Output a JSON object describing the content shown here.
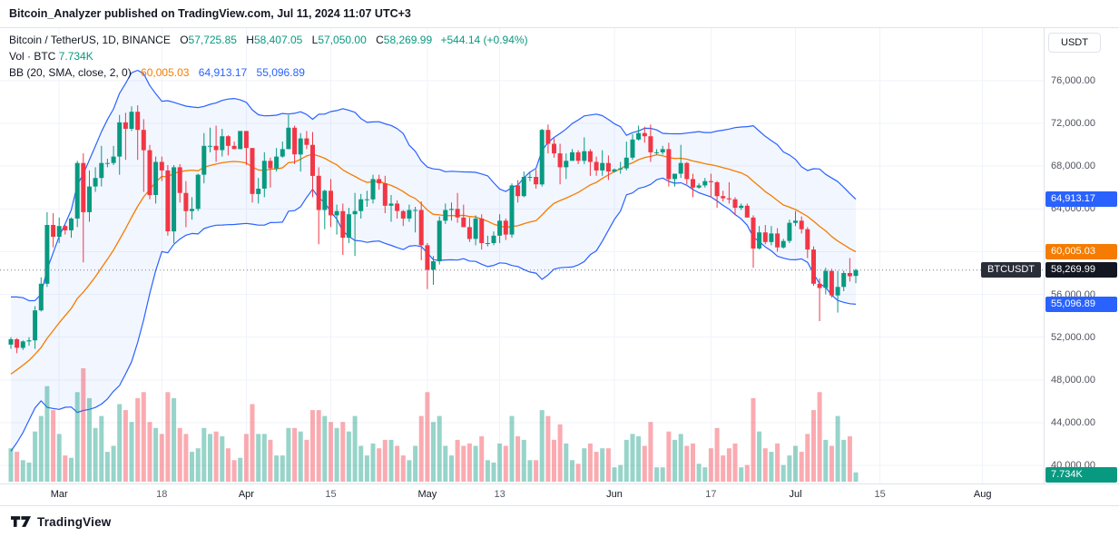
{
  "header": {
    "attribution": "Bitcoin_Analyzer published on TradingView.com, Jul 11, 2024 11:07 UTC+3"
  },
  "legend": {
    "symbol": "Bitcoin / TetherUS, 1D, BINANCE",
    "ohlc": {
      "o_label": "O",
      "o": "57,725.85",
      "h_label": "H",
      "h": "58,407.05",
      "l_label": "L",
      "l": "57,050.00",
      "c_label": "C",
      "c": "58,269.99",
      "change": "+544.14 (+0.94%)"
    },
    "volume": {
      "label": "Vol · BTC",
      "value": "7.734K"
    },
    "bb": {
      "label": "BB (20, SMA, close, 2, 0)",
      "basis": "60,005.03",
      "upper": "64,913.17",
      "lower": "55,096.89"
    }
  },
  "pane": {
    "symbol_tag": "BTCUSDT"
  },
  "price_axis": {
    "currency": "USDT",
    "ticks": [
      {
        "label": "76,000.00",
        "value": 76000
      },
      {
        "label": "72,000.00",
        "value": 72000
      },
      {
        "label": "68,000.00",
        "value": 68000
      },
      {
        "label": "64,000.00",
        "value": 64000
      },
      {
        "label": "60,000.00",
        "value": 60000
      },
      {
        "label": "56,000.00",
        "value": 56000
      },
      {
        "label": "52,000.00",
        "value": 52000
      },
      {
        "label": "48,000.00",
        "value": 48000
      },
      {
        "label": "44,000.00",
        "value": 44000
      },
      {
        "label": "40,000.00",
        "value": 40000
      }
    ],
    "badges": [
      {
        "name": "bb-upper-badge",
        "label": "64,913.17",
        "value": 64913.17,
        "color": "#2962FF"
      },
      {
        "name": "bb-basis-badge",
        "label": "60,005.03",
        "value": 60005.03,
        "color": "#F57C00"
      },
      {
        "name": "last-price-badge",
        "label": "58,269.99",
        "value": 58269.99,
        "color": "#131722"
      },
      {
        "name": "bb-lower-badge",
        "label": "55,096.89",
        "value": 55096.89,
        "color": "#2962FF"
      }
    ],
    "volume_badge": {
      "label": "7.734K",
      "color": "#089981"
    }
  },
  "time_axis": {
    "labels": [
      {
        "text": "Mar",
        "index": 8,
        "type": "month"
      },
      {
        "text": "18",
        "index": 25,
        "type": "day"
      },
      {
        "text": "Apr",
        "index": 39,
        "type": "month"
      },
      {
        "text": "15",
        "index": 53,
        "type": "day"
      },
      {
        "text": "May",
        "index": 69,
        "type": "month"
      },
      {
        "text": "13",
        "index": 81,
        "type": "day"
      },
      {
        "text": "Jun",
        "index": 100,
        "type": "month"
      },
      {
        "text": "17",
        "index": 116,
        "type": "day"
      },
      {
        "text": "Jul",
        "index": 130,
        "type": "month"
      },
      {
        "text": "15",
        "index": 144,
        "type": "day"
      },
      {
        "text": "Aug",
        "index": 161,
        "type": "month"
      }
    ]
  },
  "footer": {
    "brand": "TradingView"
  },
  "colors": {
    "up": "#089981",
    "down": "#F23645",
    "bb_band": "#2962FF",
    "bb_basis": "#F57C00",
    "bb_fill": "rgba(41,98,255,0.06)",
    "grid": "#F0F3FA",
    "price_line": "#787B86"
  },
  "chart_data": {
    "type": "candlestick",
    "symbol": "BTCUSDT",
    "exchange": "BINANCE",
    "interval": "1D",
    "unit": "USDT",
    "volume_unit": "K BTC",
    "start_date": "2024-02-22",
    "last_price": 58269.99,
    "last_change": "+544.14 (+0.94%)",
    "last_volume_k": 7.734,
    "ylim": [
      40000,
      76000
    ],
    "overlays": {
      "bollinger": {
        "length": 20,
        "source": "close",
        "mult": 2,
        "offset": 0,
        "basis": 60005.03,
        "upper": 64913.17,
        "lower": 55096.89
      }
    },
    "bb_seed_closes": [
      43000,
      42900,
      42700,
      43100,
      44300,
      45300,
      47100,
      47800,
      48300,
      49900,
      49700,
      51800,
      51900,
      52200,
      51700,
      52100,
      51600,
      52300,
      51300
    ],
    "ohlcv": [
      [
        51300,
        52000,
        50900,
        51800,
        28
      ],
      [
        51800,
        51900,
        50500,
        51000,
        25
      ],
      [
        51000,
        51700,
        50800,
        51600,
        18
      ],
      [
        51600,
        52000,
        51200,
        51700,
        16
      ],
      [
        51700,
        54900,
        50900,
        54500,
        42
      ],
      [
        54500,
        57600,
        54400,
        57000,
        55
      ],
      [
        57000,
        63700,
        56700,
        62500,
        80
      ],
      [
        62500,
        63600,
        60400,
        61400,
        60
      ],
      [
        61400,
        63200,
        60800,
        62400,
        40
      ],
      [
        62400,
        62500,
        61600,
        62000,
        22
      ],
      [
        62000,
        63200,
        61300,
        63100,
        20
      ],
      [
        63100,
        68500,
        62300,
        68300,
        75
      ],
      [
        68300,
        69200,
        59000,
        63700,
        95
      ],
      [
        63700,
        67600,
        62800,
        66100,
        70
      ],
      [
        66100,
        67900,
        65600,
        66900,
        45
      ],
      [
        66900,
        69900,
        66100,
        68300,
        55
      ],
      [
        68300,
        68700,
        67900,
        68300,
        25
      ],
      [
        68300,
        69900,
        68100,
        68900,
        30
      ],
      [
        68900,
        72800,
        67200,
        72100,
        65
      ],
      [
        72100,
        73000,
        68600,
        71500,
        60
      ],
      [
        71500,
        73600,
        71300,
        73100,
        50
      ],
      [
        73100,
        73700,
        68600,
        71400,
        70
      ],
      [
        71400,
        72400,
        65600,
        69500,
        75
      ],
      [
        69500,
        70000,
        64900,
        65300,
        50
      ],
      [
        65300,
        68900,
        64500,
        68400,
        45
      ],
      [
        68400,
        68900,
        66600,
        67600,
        40
      ],
      [
        67600,
        68100,
        61500,
        61900,
        75
      ],
      [
        61900,
        68100,
        60800,
        67900,
        70
      ],
      [
        67900,
        68200,
        64600,
        65500,
        45
      ],
      [
        65500,
        66600,
        62300,
        63800,
        40
      ],
      [
        63800,
        65100,
        63000,
        64000,
        25
      ],
      [
        64000,
        67300,
        63800,
        67200,
        28
      ],
      [
        67200,
        71100,
        66400,
        69900,
        45
      ],
      [
        69900,
        71600,
        69300,
        69900,
        40
      ],
      [
        69900,
        71800,
        68400,
        69500,
        42
      ],
      [
        69500,
        71500,
        68900,
        70800,
        38
      ],
      [
        70800,
        70900,
        69000,
        69900,
        28
      ],
      [
        69900,
        70300,
        69600,
        69600,
        18
      ],
      [
        69600,
        71300,
        69600,
        71300,
        20
      ],
      [
        71300,
        71300,
        68100,
        69700,
        40
      ],
      [
        69700,
        69700,
        64600,
        65400,
        65
      ],
      [
        65400,
        66900,
        64500,
        65900,
        40
      ],
      [
        65900,
        69300,
        65100,
        68500,
        40
      ],
      [
        68500,
        68800,
        66000,
        67800,
        35
      ],
      [
        67800,
        69700,
        67500,
        68900,
        22
      ],
      [
        68900,
        70300,
        68800,
        69600,
        22
      ],
      [
        69600,
        72800,
        69600,
        71600,
        45
      ],
      [
        71600,
        71800,
        68200,
        69100,
        45
      ],
      [
        69100,
        71100,
        67500,
        70600,
        42
      ],
      [
        70600,
        71300,
        69600,
        70000,
        35
      ],
      [
        70000,
        71200,
        65100,
        67100,
        60
      ],
      [
        67100,
        67900,
        60700,
        63900,
        60
      ],
      [
        63900,
        65800,
        62100,
        65700,
        55
      ],
      [
        65700,
        66800,
        62300,
        63400,
        50
      ],
      [
        63400,
        64400,
        61600,
        63800,
        45
      ],
      [
        63800,
        64500,
        59700,
        61300,
        50
      ],
      [
        61300,
        64100,
        60800,
        63500,
        42
      ],
      [
        63500,
        65500,
        59600,
        63800,
        55
      ],
      [
        63800,
        65400,
        63100,
        64900,
        30
      ],
      [
        64900,
        65700,
        64200,
        64900,
        22
      ],
      [
        64900,
        67200,
        64500,
        66800,
        32
      ],
      [
        66800,
        67200,
        65800,
        66400,
        28
      ],
      [
        66400,
        67100,
        63600,
        64300,
        35
      ],
      [
        64300,
        65300,
        62800,
        64500,
        35
      ],
      [
        64500,
        64800,
        63100,
        63800,
        30
      ],
      [
        63800,
        63900,
        62400,
        63100,
        22
      ],
      [
        63100,
        64400,
        62800,
        63900,
        18
      ],
      [
        63900,
        64200,
        61800,
        63900,
        30
      ],
      [
        63900,
        64700,
        59200,
        60600,
        55
      ],
      [
        60600,
        60800,
        56500,
        58300,
        75
      ],
      [
        58300,
        59600,
        56900,
        59100,
        50
      ],
      [
        59100,
        63300,
        58800,
        62900,
        55
      ],
      [
        62900,
        64500,
        62600,
        63900,
        30
      ],
      [
        63900,
        64600,
        62900,
        64000,
        22
      ],
      [
        64000,
        65500,
        62700,
        63200,
        35
      ],
      [
        63200,
        64400,
        62300,
        62300,
        30
      ],
      [
        62300,
        63200,
        60900,
        61200,
        32
      ],
      [
        61200,
        63400,
        60600,
        63100,
        30
      ],
      [
        63100,
        63500,
        60200,
        60800,
        38
      ],
      [
        60800,
        61500,
        60500,
        60800,
        18
      ],
      [
        60800,
        61900,
        60600,
        61500,
        16
      ],
      [
        61500,
        63500,
        60800,
        62900,
        32
      ],
      [
        62900,
        63100,
        61100,
        61600,
        30
      ],
      [
        61600,
        66400,
        61300,
        66200,
        55
      ],
      [
        66200,
        66700,
        64600,
        65200,
        38
      ],
      [
        65200,
        67500,
        65100,
        67000,
        35
      ],
      [
        67000,
        67400,
        66600,
        67000,
        18
      ],
      [
        67000,
        67700,
        65900,
        66300,
        18
      ],
      [
        66300,
        71500,
        66100,
        71400,
        60
      ],
      [
        71400,
        71900,
        69200,
        70100,
        55
      ],
      [
        70100,
        70600,
        68800,
        69200,
        35
      ],
      [
        69200,
        70100,
        66300,
        67900,
        48
      ],
      [
        67900,
        69200,
        66800,
        68500,
        32
      ],
      [
        68500,
        69600,
        68500,
        69300,
        18
      ],
      [
        69300,
        69500,
        68200,
        68500,
        15
      ],
      [
        68500,
        70700,
        68200,
        69400,
        28
      ],
      [
        69400,
        69600,
        67100,
        68400,
        32
      ],
      [
        68400,
        68900,
        67100,
        67600,
        25
      ],
      [
        67600,
        69500,
        67100,
        68300,
        28
      ],
      [
        68300,
        69000,
        66700,
        67500,
        28
      ],
      [
        67500,
        67800,
        67400,
        67700,
        12
      ],
      [
        67700,
        68400,
        67300,
        67800,
        14
      ],
      [
        67800,
        70300,
        67600,
        68800,
        35
      ],
      [
        68800,
        71000,
        68600,
        70500,
        40
      ],
      [
        70500,
        71800,
        70400,
        71100,
        38
      ],
      [
        71100,
        71700,
        70200,
        70800,
        30
      ],
      [
        70800,
        71900,
        68400,
        69300,
        50
      ],
      [
        69300,
        69600,
        69100,
        69300,
        12
      ],
      [
        69300,
        69900,
        69100,
        69600,
        12
      ],
      [
        69600,
        70200,
        66100,
        66800,
        42
      ],
      [
        66800,
        67300,
        66100,
        67300,
        35
      ],
      [
        67300,
        70000,
        66900,
        68300,
        40
      ],
      [
        68300,
        68400,
        66300,
        66800,
        30
      ],
      [
        66800,
        67300,
        65100,
        66000,
        32
      ],
      [
        66000,
        66400,
        65900,
        66200,
        15
      ],
      [
        66200,
        66900,
        66000,
        66600,
        12
      ],
      [
        66600,
        67300,
        65100,
        66500,
        28
      ],
      [
        66500,
        66600,
        64100,
        65200,
        45
      ],
      [
        65200,
        65700,
        64700,
        65000,
        22
      ],
      [
        65000,
        66500,
        64500,
        64900,
        28
      ],
      [
        64900,
        65100,
        63400,
        64100,
        32
      ],
      [
        64100,
        64500,
        63900,
        64300,
        12
      ],
      [
        64300,
        64500,
        63200,
        63200,
        14
      ],
      [
        63200,
        63400,
        58500,
        60300,
        70
      ],
      [
        60300,
        62400,
        60200,
        61800,
        42
      ],
      [
        61800,
        62500,
        60700,
        60900,
        28
      ],
      [
        60900,
        62400,
        60600,
        61700,
        25
      ],
      [
        61700,
        62200,
        60000,
        60400,
        32
      ],
      [
        60400,
        61200,
        60300,
        61000,
        14
      ],
      [
        61000,
        63000,
        60800,
        62700,
        22
      ],
      [
        62700,
        63800,
        62400,
        62900,
        30
      ],
      [
        62900,
        63300,
        61700,
        62100,
        25
      ],
      [
        62100,
        62300,
        59400,
        60200,
        40
      ],
      [
        60200,
        60500,
        56800,
        57000,
        60
      ],
      [
        57000,
        57500,
        53500,
        56600,
        75
      ],
      [
        56600,
        58500,
        56000,
        58200,
        35
      ],
      [
        58200,
        58400,
        55700,
        55900,
        30
      ],
      [
        55900,
        58200,
        54300,
        56700,
        55
      ],
      [
        56700,
        58200,
        56300,
        58000,
        35
      ],
      [
        58000,
        59400,
        57200,
        57700,
        38
      ],
      [
        57725.85,
        58407.05,
        57050,
        58269.99,
        7.734
      ]
    ]
  }
}
